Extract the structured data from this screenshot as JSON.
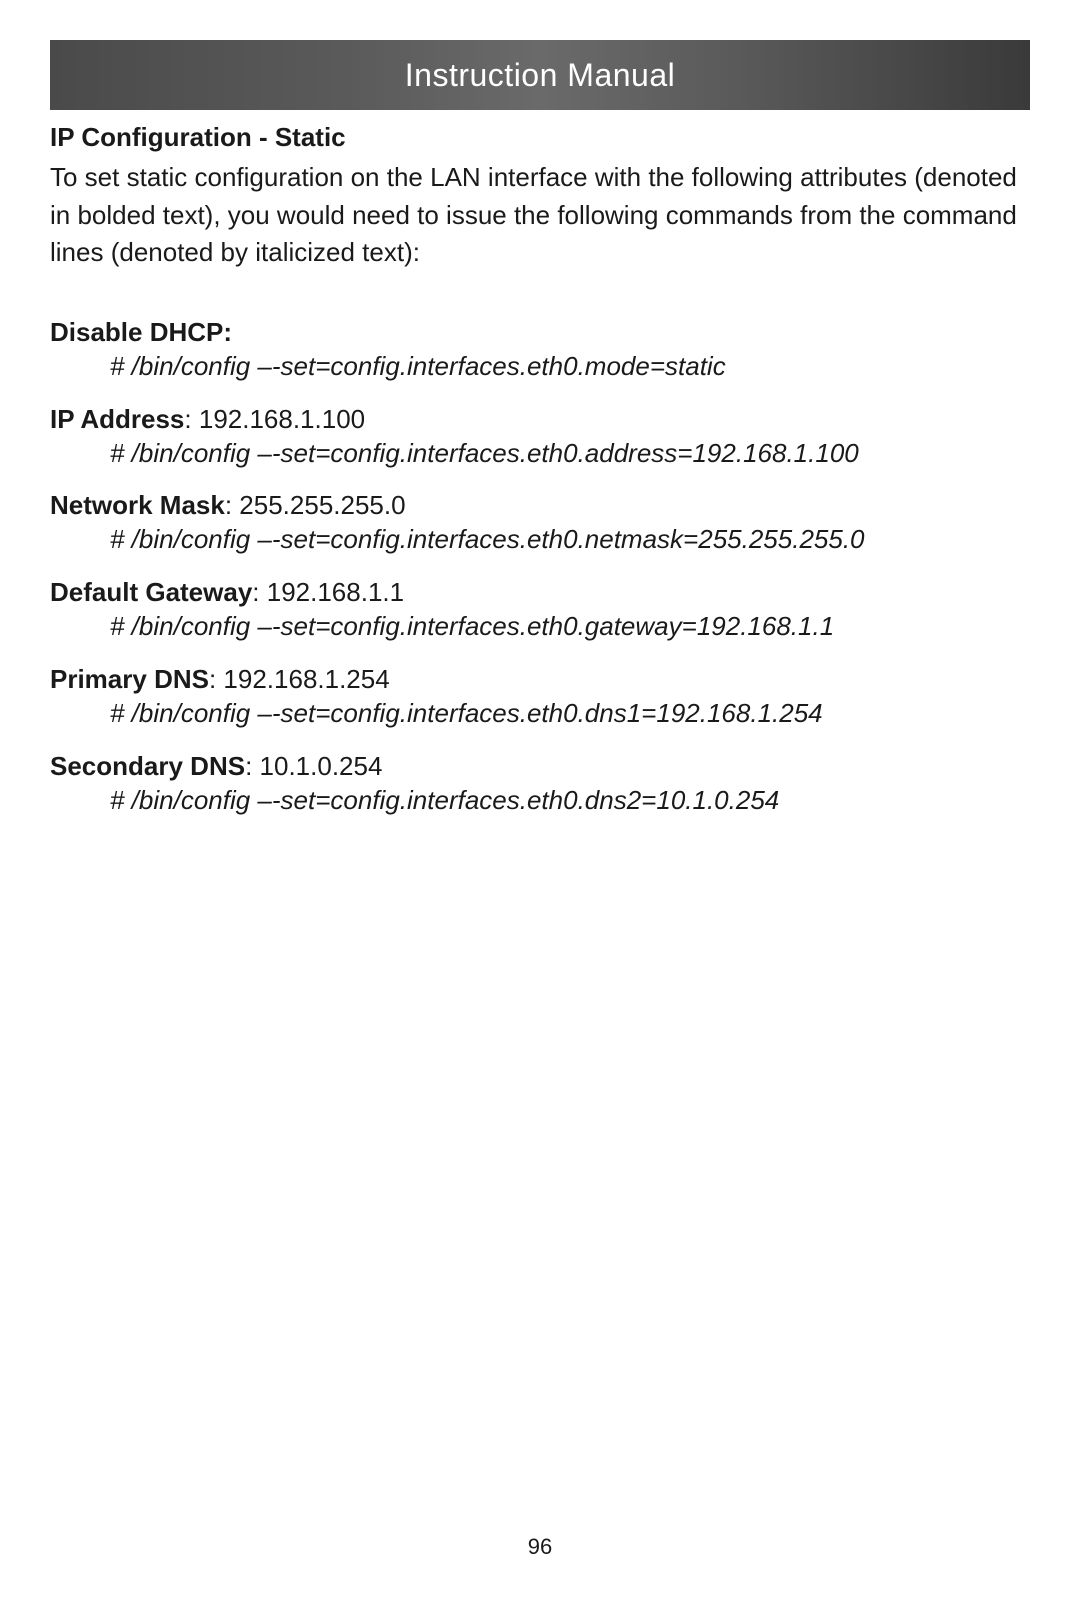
{
  "header": {
    "title": "Instruction Manual"
  },
  "section": {
    "title": "IP Configuration - Static",
    "intro": "To set static configuration on the LAN interface with the following attributes (denoted in bolded text), you would need to issue the following commands from the command lines (denoted by italicized text):"
  },
  "configs": [
    {
      "label": "Disable DHCP:",
      "value": "",
      "command": "# /bin/config –-set=config.interfaces.eth0.mode=static"
    },
    {
      "label": "IP Address",
      "value": ": 192.168.1.100",
      "command": "# /bin/config –-set=config.interfaces.eth0.address=192.168.1.100"
    },
    {
      "label": "Network Mask",
      "value": ": 255.255.255.0",
      "command": "# /bin/config –-set=config.interfaces.eth0.netmask=255.255.255.0"
    },
    {
      "label": "Default Gateway",
      "value": ": 192.168.1.1",
      "command": "# /bin/config –-set=config.interfaces.eth0.gateway=192.168.1.1"
    },
    {
      "label": "Primary DNS",
      "value": ": 192.168.1.254",
      "command": "# /bin/config –-set=config.interfaces.eth0.dns1=192.168.1.254"
    },
    {
      "label": "Secondary DNS",
      "value": ": 10.1.0.254",
      "command": "# /bin/config –-set=config.interfaces.eth0.dns2=10.1.0.254"
    }
  ],
  "pageNumber": "96",
  "styling": {
    "background_color": "#ffffff",
    "text_color": "#1a1a1a",
    "header_text_color": "#ffffff",
    "header_gradient_start": "#4a4a4a",
    "header_gradient_end": "#3a3a3a",
    "body_font_size": 26,
    "header_font_size": 32,
    "page_number_font_size": 22
  }
}
